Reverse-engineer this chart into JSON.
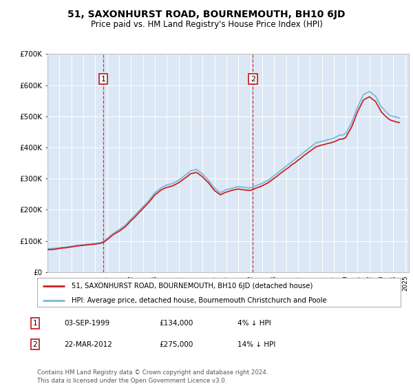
{
  "title": "51, SAXONHURST ROAD, BOURNEMOUTH, BH10 6JD",
  "subtitle": "Price paid vs. HM Land Registry's House Price Index (HPI)",
  "plot_bg_color": "#dce8f5",
  "legend_line1": "51, SAXONHURST ROAD, BOURNEMOUTH, BH10 6JD (detached house)",
  "legend_line2": "HPI: Average price, detached house, Bournemouth Christchurch and Poole",
  "sale1_label": "1",
  "sale1_date": "03-SEP-1999",
  "sale1_price": "£134,000",
  "sale1_note": "4% ↓ HPI",
  "sale2_label": "2",
  "sale2_date": "22-MAR-2012",
  "sale2_price": "£275,000",
  "sale2_note": "14% ↓ HPI",
  "footer": "Contains HM Land Registry data © Crown copyright and database right 2024.\nThis data is licensed under the Open Government Licence v3.0.",
  "hpi_color": "#7ab8d9",
  "price_color": "#cc2222",
  "dashed_color": "#cc2222",
  "marker_box_color": "#cc2222",
  "ylim": [
    0,
    700000
  ],
  "yticks": [
    0,
    100000,
    200000,
    300000,
    400000,
    500000,
    600000,
    700000
  ],
  "sale1_year": 1999.67,
  "sale2_year": 2012.22,
  "hpi_x": [
    1995.0,
    1995.25,
    1995.5,
    1995.75,
    1996.0,
    1996.25,
    1996.5,
    1996.75,
    1997.0,
    1997.25,
    1997.5,
    1997.75,
    1998.0,
    1998.25,
    1998.5,
    1998.75,
    1999.0,
    1999.25,
    1999.5,
    1999.75,
    2000.0,
    2000.25,
    2000.5,
    2000.75,
    2001.0,
    2001.25,
    2001.5,
    2001.75,
    2002.0,
    2002.25,
    2002.5,
    2002.75,
    2003.0,
    2003.25,
    2003.5,
    2003.75,
    2004.0,
    2004.25,
    2004.5,
    2004.75,
    2005.0,
    2005.25,
    2005.5,
    2005.75,
    2006.0,
    2006.25,
    2006.5,
    2006.75,
    2007.0,
    2007.25,
    2007.5,
    2007.75,
    2008.0,
    2008.25,
    2008.5,
    2008.75,
    2009.0,
    2009.25,
    2009.5,
    2009.75,
    2010.0,
    2010.25,
    2010.5,
    2010.75,
    2011.0,
    2011.25,
    2011.5,
    2011.75,
    2012.0,
    2012.25,
    2012.5,
    2012.75,
    2013.0,
    2013.25,
    2013.5,
    2013.75,
    2014.0,
    2014.25,
    2014.5,
    2014.75,
    2015.0,
    2015.25,
    2015.5,
    2015.75,
    2016.0,
    2016.25,
    2016.5,
    2016.75,
    2017.0,
    2017.25,
    2017.5,
    2017.75,
    2018.0,
    2018.25,
    2018.5,
    2018.75,
    2019.0,
    2019.25,
    2019.5,
    2019.75,
    2020.0,
    2020.25,
    2020.5,
    2020.75,
    2021.0,
    2021.25,
    2021.5,
    2021.75,
    2022.0,
    2022.25,
    2022.5,
    2022.75,
    2023.0,
    2023.25,
    2023.5,
    2023.75,
    2024.0,
    2024.25,
    2024.5
  ],
  "hpi_y": [
    75000,
    75500,
    76000,
    77000,
    78000,
    79000,
    80000,
    81500,
    83000,
    84500,
    86000,
    87000,
    88000,
    89000,
    90000,
    91000,
    92000,
    93500,
    95000,
    100000,
    108000,
    116000,
    124000,
    130000,
    136000,
    143000,
    150000,
    160000,
    170000,
    180000,
    190000,
    200000,
    210000,
    220000,
    230000,
    242000,
    255000,
    262000,
    270000,
    275000,
    280000,
    282000,
    285000,
    290000,
    295000,
    302000,
    310000,
    317000,
    325000,
    327000,
    330000,
    322000,
    315000,
    305000,
    295000,
    282000,
    270000,
    262000,
    255000,
    260000,
    265000,
    267000,
    270000,
    272000,
    275000,
    273000,
    272000,
    271000,
    270000,
    274000,
    278000,
    281000,
    285000,
    290000,
    295000,
    302000,
    310000,
    317000,
    325000,
    332000,
    340000,
    347000,
    355000,
    362000,
    370000,
    377000,
    385000,
    392000,
    400000,
    407000,
    415000,
    417000,
    420000,
    422000,
    425000,
    427000,
    430000,
    435000,
    440000,
    440000,
    445000,
    462000,
    480000,
    505000,
    530000,
    550000,
    570000,
    575000,
    580000,
    572000,
    565000,
    547000,
    530000,
    520000,
    510000,
    502000,
    500000,
    497000,
    495000
  ],
  "price_x": [
    1995.0,
    1995.25,
    1995.5,
    1995.75,
    1996.0,
    1996.25,
    1996.5,
    1996.75,
    1997.0,
    1997.25,
    1997.5,
    1997.75,
    1998.0,
    1998.25,
    1998.5,
    1998.75,
    1999.0,
    1999.25,
    1999.5,
    1999.75,
    2000.0,
    2000.25,
    2000.5,
    2000.75,
    2001.0,
    2001.25,
    2001.5,
    2001.75,
    2002.0,
    2002.25,
    2002.5,
    2002.75,
    2003.0,
    2003.25,
    2003.5,
    2003.75,
    2004.0,
    2004.25,
    2004.5,
    2004.75,
    2005.0,
    2005.25,
    2005.5,
    2005.75,
    2006.0,
    2006.25,
    2006.5,
    2006.75,
    2007.0,
    2007.25,
    2007.5,
    2007.75,
    2008.0,
    2008.25,
    2008.5,
    2008.75,
    2009.0,
    2009.25,
    2009.5,
    2009.75,
    2010.0,
    2010.25,
    2010.5,
    2010.75,
    2011.0,
    2011.25,
    2011.5,
    2011.75,
    2012.0,
    2012.25,
    2012.5,
    2012.75,
    2013.0,
    2013.25,
    2013.5,
    2013.75,
    2014.0,
    2014.25,
    2014.5,
    2014.75,
    2015.0,
    2015.25,
    2015.5,
    2015.75,
    2016.0,
    2016.25,
    2016.5,
    2016.75,
    2017.0,
    2017.25,
    2017.5,
    2017.75,
    2018.0,
    2018.25,
    2018.5,
    2018.75,
    2019.0,
    2019.25,
    2019.5,
    2019.75,
    2020.0,
    2020.25,
    2020.5,
    2020.75,
    2021.0,
    2021.25,
    2021.5,
    2021.75,
    2022.0,
    2022.25,
    2022.5,
    2022.75,
    2023.0,
    2023.25,
    2023.5,
    2023.75,
    2024.0,
    2024.25,
    2024.5
  ],
  "price_y": [
    72000,
    72500,
    73000,
    74500,
    76000,
    77500,
    78000,
    79500,
    81000,
    82500,
    84000,
    85000,
    86000,
    87000,
    88000,
    89000,
    90000,
    91500,
    93000,
    97500,
    104000,
    112000,
    120000,
    126000,
    131000,
    138000,
    145000,
    155000,
    165000,
    174000,
    184000,
    194000,
    204000,
    214000,
    224000,
    236000,
    248000,
    255000,
    263000,
    268000,
    272000,
    274000,
    277000,
    282000,
    287000,
    294000,
    301000,
    308000,
    316000,
    318000,
    320000,
    313000,
    306000,
    296000,
    287000,
    274000,
    262000,
    255000,
    248000,
    253000,
    257000,
    260000,
    263000,
    265000,
    267000,
    265000,
    264000,
    263000,
    262000,
    266000,
    270000,
    273000,
    277000,
    282000,
    287000,
    294000,
    301000,
    308000,
    316000,
    323000,
    330000,
    337000,
    345000,
    351000,
    359000,
    366000,
    374000,
    381000,
    388000,
    395000,
    402000,
    405000,
    408000,
    410000,
    413000,
    415000,
    418000,
    422000,
    427000,
    427000,
    432000,
    449000,
    466000,
    490000,
    515000,
    534000,
    553000,
    558000,
    563000,
    555000,
    548000,
    531000,
    514000,
    504000,
    495000,
    488000,
    485000,
    482000,
    480000
  ],
  "xlim_left": 1995,
  "xlim_right": 2025.3,
  "marker1_y": 620000,
  "marker2_y": 620000
}
